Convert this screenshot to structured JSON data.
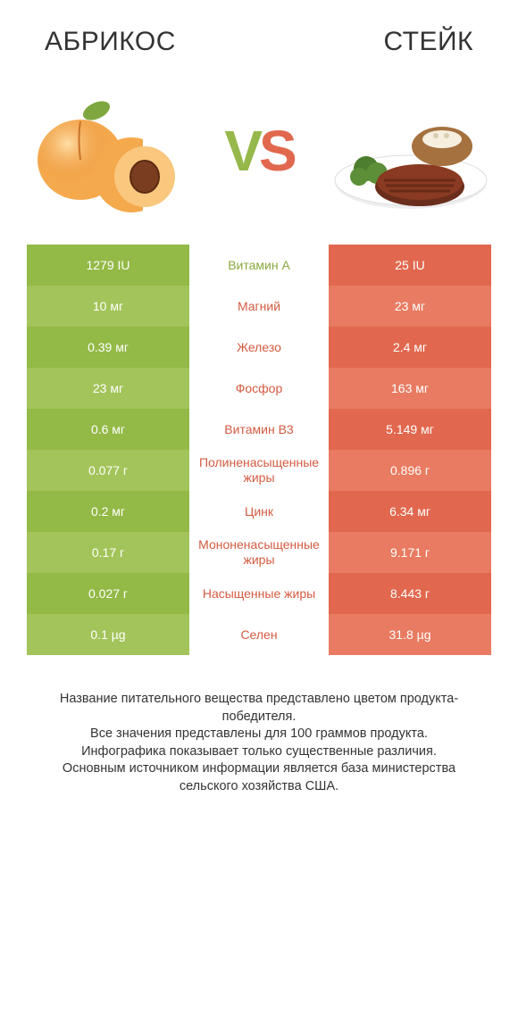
{
  "titles": {
    "left": "АБРИКОС",
    "right": "СТЕЙК"
  },
  "vs": {
    "v": "V",
    "s": "S"
  },
  "colors": {
    "green_a": "#93b946",
    "green_b": "#a3c45a",
    "orange_a": "#e1684e",
    "orange_b": "#e87b61",
    "mid_green": "#8aa93e",
    "mid_orange": "#d35b41",
    "text": "#333333"
  },
  "table": {
    "rows": [
      {
        "left": "1279 IU",
        "label": "Витамин A",
        "right": "25 IU",
        "winner": "left"
      },
      {
        "left": "10 мг",
        "label": "Магний",
        "right": "23 мг",
        "winner": "right"
      },
      {
        "left": "0.39 мг",
        "label": "Железо",
        "right": "2.4 мг",
        "winner": "right"
      },
      {
        "left": "23 мг",
        "label": "Фосфор",
        "right": "163 мг",
        "winner": "right"
      },
      {
        "left": "0.6 мг",
        "label": "Витамин B3",
        "right": "5.149 мг",
        "winner": "right"
      },
      {
        "left": "0.077 г",
        "label": "Полиненасыщенные жиры",
        "right": "0.896 г",
        "winner": "right"
      },
      {
        "left": "0.2 мг",
        "label": "Цинк",
        "right": "6.34 мг",
        "winner": "right"
      },
      {
        "left": "0.17 г",
        "label": "Мононенасыщенные жиры",
        "right": "9.171 г",
        "winner": "right"
      },
      {
        "left": "0.027 г",
        "label": "Насыщенные жиры",
        "right": "8.443 г",
        "winner": "right"
      },
      {
        "left": "0.1 µg",
        "label": "Селен",
        "right": "31.8 µg",
        "winner": "right"
      }
    ]
  },
  "footer": {
    "line1": "Название питательного вещества представлено цветом продукта-победителя.",
    "line2": "Все значения представлены для 100 граммов продукта.",
    "line3": "Инфографика показывает только существенные различия.",
    "line4": "Основным источником информации является база министерства сельского хозяйства США."
  }
}
